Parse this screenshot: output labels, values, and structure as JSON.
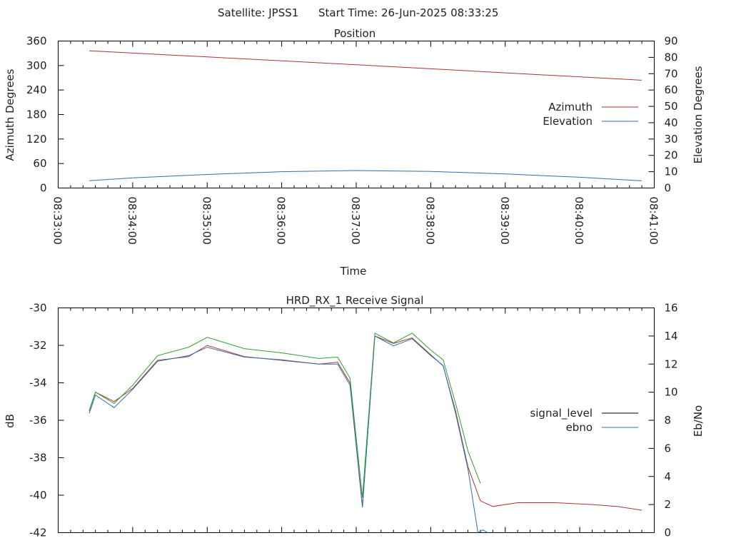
{
  "header": {
    "satellite": "Satellite: JPSS1",
    "start_time": "Start Time: 26-Jun-2025 08:33:25"
  },
  "chart_data": [
    {
      "type": "line",
      "title": "Position",
      "xlabel": "Time",
      "ylabel_left": "Azimuth Degrees",
      "ylabel_right": "Elevation Degrees",
      "x_ticks": [
        "08:33:00",
        "08:34:00",
        "08:35:00",
        "08:36:00",
        "08:37:00",
        "08:38:00",
        "08:39:00",
        "08:40:00",
        "08:41:00"
      ],
      "xlim": [
        "08:33:00",
        "08:41:00"
      ],
      "ylim_left": [
        0,
        360
      ],
      "ylim_right": [
        0,
        90
      ],
      "yticks_left": [
        "0",
        "60",
        "120",
        "180",
        "240",
        "300",
        "360"
      ],
      "yticks_right": [
        "0",
        "10",
        "20",
        "30",
        "40",
        "50",
        "60",
        "70",
        "80",
        "90"
      ],
      "legend_position": "right",
      "series": [
        {
          "name": "Azimuth",
          "axis": "left",
          "color": "#b03030",
          "points": [
            [
              "08:33:25",
              336
            ],
            [
              "08:35:00",
              321
            ],
            [
              "08:37:00",
              302
            ],
            [
              "08:39:00",
              282
            ],
            [
              "08:40:50",
              264
            ]
          ]
        },
        {
          "name": "Elevation",
          "axis": "right",
          "color": "#2f6fb0",
          "points": [
            [
              "08:33:25",
              4.5
            ],
            [
              "08:34:00",
              6.2
            ],
            [
              "08:35:00",
              8.3
            ],
            [
              "08:36:00",
              10
            ],
            [
              "08:37:00",
              10.7
            ],
            [
              "08:38:00",
              10.2
            ],
            [
              "08:39:00",
              8.6
            ],
            [
              "08:40:00",
              6.6
            ],
            [
              "08:40:50",
              4.4
            ]
          ]
        }
      ]
    },
    {
      "type": "line",
      "title": "HRD_RX_1 Receive Signal",
      "ylabel_left": "dB",
      "ylabel_right": "Eb/No",
      "xlim": [
        "08:33:00",
        "08:41:00"
      ],
      "ylim_left": [
        -42,
        -30
      ],
      "ylim_right": [
        0,
        16
      ],
      "yticks_left": [
        "-42",
        "-40",
        "-38",
        "-36",
        "-34",
        "-32",
        "-30"
      ],
      "yticks_right": [
        "0",
        "2",
        "4",
        "6",
        "8",
        "10",
        "12",
        "14",
        "16"
      ],
      "legend_position": "right",
      "series": [
        {
          "name": "signal_level",
          "axis": "left",
          "color": "#b03030",
          "points": [
            [
              "08:33:25",
              -35.5
            ],
            [
              "08:33:30",
              -34.5
            ],
            [
              "08:33:45",
              -35.0
            ],
            [
              "08:34:00",
              -34.3
            ],
            [
              "08:34:20",
              -32.8
            ],
            [
              "08:34:45",
              -32.6
            ],
            [
              "08:35:00",
              -32.0
            ],
            [
              "08:35:30",
              -32.6
            ],
            [
              "08:36:00",
              -32.8
            ],
            [
              "08:36:30",
              -33.0
            ],
            [
              "08:36:45",
              -32.9
            ],
            [
              "08:36:55",
              -34.0
            ],
            [
              "08:37:05",
              -40.6
            ],
            [
              "08:37:15",
              -31.5
            ],
            [
              "08:37:30",
              -31.9
            ],
            [
              "08:37:45",
              -31.6
            ],
            [
              "08:38:00",
              -32.5
            ],
            [
              "08:38:10",
              -33.1
            ],
            [
              "08:38:20",
              -35.5
            ],
            [
              "08:38:30",
              -38.5
            ],
            [
              "08:38:40",
              -40.3
            ],
            [
              "08:38:50",
              -40.6
            ],
            [
              "08:39:10",
              -40.4
            ],
            [
              "08:39:40",
              -40.4
            ],
            [
              "08:40:10",
              -40.5
            ],
            [
              "08:40:30",
              -40.6
            ],
            [
              "08:40:50",
              -40.8
            ]
          ]
        },
        {
          "name": "ebno",
          "axis": "right",
          "color": "#2f6fb0",
          "points": [
            [
              "08:33:25",
              8.5
            ],
            [
              "08:33:30",
              9.8
            ],
            [
              "08:33:45",
              8.9
            ],
            [
              "08:34:00",
              10.2
            ],
            [
              "08:34:20",
              12.2
            ],
            [
              "08:34:45",
              12.6
            ],
            [
              "08:35:00",
              13.2
            ],
            [
              "08:35:30",
              12.5
            ],
            [
              "08:36:00",
              12.3
            ],
            [
              "08:36:30",
              12.0
            ],
            [
              "08:36:45",
              12.0
            ],
            [
              "08:36:55",
              10.5
            ],
            [
              "08:37:05",
              1.8
            ],
            [
              "08:37:15",
              14.0
            ],
            [
              "08:37:30",
              13.3
            ],
            [
              "08:37:45",
              13.8
            ],
            [
              "08:38:00",
              12.6
            ],
            [
              "08:38:10",
              11.9
            ],
            [
              "08:38:20",
              8.5
            ],
            [
              "08:38:30",
              4.5
            ],
            [
              "08:38:38",
              0.0
            ],
            [
              "08:38:42",
              0.2
            ],
            [
              "08:38:46",
              0.0
            ]
          ]
        },
        {
          "name": "",
          "axis": "right",
          "color": "#2ea02e",
          "points": [
            [
              "08:33:25",
              8.7
            ],
            [
              "08:33:30",
              10.0
            ],
            [
              "08:33:45",
              9.2
            ],
            [
              "08:34:00",
              10.5
            ],
            [
              "08:34:20",
              12.6
            ],
            [
              "08:34:45",
              13.2
            ],
            [
              "08:35:00",
              13.9
            ],
            [
              "08:35:30",
              13.1
            ],
            [
              "08:36:00",
              12.8
            ],
            [
              "08:36:30",
              12.4
            ],
            [
              "08:36:45",
              12.5
            ],
            [
              "08:36:55",
              11.0
            ],
            [
              "08:37:05",
              2.5
            ],
            [
              "08:37:15",
              14.2
            ],
            [
              "08:37:30",
              13.5
            ],
            [
              "08:37:45",
              14.2
            ],
            [
              "08:38:00",
              13.0
            ],
            [
              "08:38:10",
              12.3
            ],
            [
              "08:38:20",
              9.2
            ],
            [
              "08:38:30",
              5.8
            ],
            [
              "08:38:40",
              3.5
            ]
          ]
        }
      ]
    }
  ]
}
